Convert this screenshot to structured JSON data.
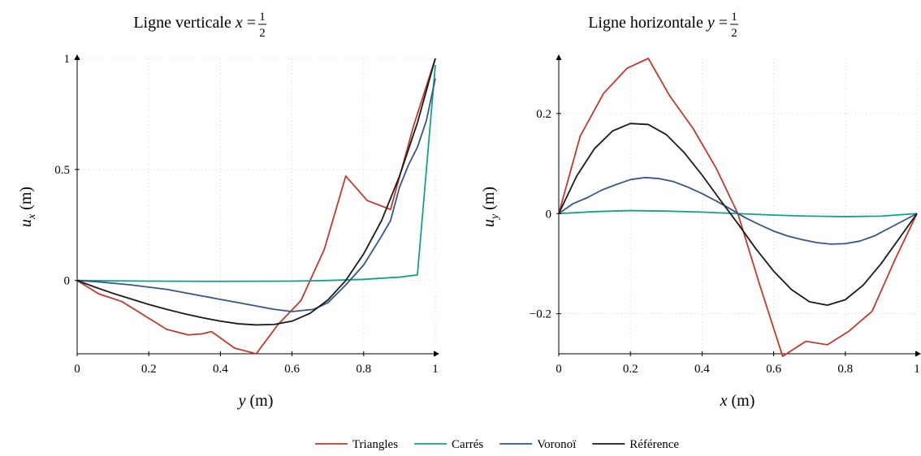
{
  "chart_data": [
    {
      "type": "line",
      "title": "Ligne verticale x = ½",
      "title_parts": {
        "text": "Ligne verticale ",
        "var": "x",
        "eq": " = ",
        "num": "1",
        "den": "2"
      },
      "xlabel": "y (m)",
      "xlabel_parts": {
        "var": "y",
        "unit": " (m)"
      },
      "ylabel": "u_x (m)",
      "ylabel_parts": {
        "var": "u",
        "sub": "x",
        "unit": " (m)"
      },
      "xlim": [
        0,
        1
      ],
      "ylim": [
        -0.33,
        1.0
      ],
      "xticks": [
        0,
        0.2,
        0.4,
        0.6,
        0.8,
        1
      ],
      "xtick_labels": [
        "0",
        "0.2",
        "0.4",
        "0.6",
        "0.8",
        "1"
      ],
      "yticks": [
        0,
        0.5,
        1
      ],
      "ytick_labels": [
        "0",
        "0.5",
        "1"
      ],
      "grid": true,
      "series": [
        {
          "name": "Triangles",
          "color": "#c0392b",
          "x": [
            0,
            0.06,
            0.125,
            0.19,
            0.25,
            0.31,
            0.35,
            0.375,
            0.44,
            0.5,
            0.56,
            0.625,
            0.69,
            0.75,
            0.81,
            0.875,
            0.94,
            1.0
          ],
          "y": [
            0,
            -0.06,
            -0.095,
            -0.16,
            -0.22,
            -0.245,
            -0.24,
            -0.23,
            -0.305,
            -0.33,
            -0.2,
            -0.09,
            0.14,
            0.47,
            0.36,
            0.32,
            0.7,
            1.0
          ]
        },
        {
          "name": "Carrés",
          "color": "#16a085",
          "x": [
            0,
            0.2,
            0.4,
            0.6,
            0.7,
            0.8,
            0.9,
            0.95,
            1.0
          ],
          "y": [
            0,
            -0.003,
            -0.004,
            -0.003,
            0.0,
            0.005,
            0.015,
            0.025,
            0.97
          ]
        },
        {
          "name": "Voronoï",
          "color": "#34568b",
          "x": [
            0,
            0.05,
            0.1,
            0.15,
            0.2,
            0.25,
            0.3,
            0.35,
            0.4,
            0.45,
            0.5,
            0.55,
            0.6,
            0.63,
            0.66,
            0.7,
            0.75,
            0.8,
            0.85,
            0.875,
            0.9,
            0.925,
            0.95,
            0.975,
            1.0
          ],
          "y": [
            0,
            -0.005,
            -0.012,
            -0.02,
            -0.03,
            -0.04,
            -0.055,
            -0.07,
            -0.085,
            -0.1,
            -0.115,
            -0.13,
            -0.14,
            -0.135,
            -0.13,
            -0.1,
            -0.02,
            0.07,
            0.2,
            0.27,
            0.42,
            0.52,
            0.6,
            0.72,
            0.91
          ]
        },
        {
          "name": "Référence",
          "color": "#1a1a1a",
          "x": [
            0,
            0.05,
            0.1,
            0.15,
            0.2,
            0.25,
            0.3,
            0.35,
            0.4,
            0.45,
            0.5,
            0.55,
            0.6,
            0.65,
            0.7,
            0.75,
            0.8,
            0.85,
            0.9,
            0.95,
            1.0
          ],
          "y": [
            0,
            -0.03,
            -0.058,
            -0.083,
            -0.108,
            -0.13,
            -0.15,
            -0.168,
            -0.183,
            -0.195,
            -0.2,
            -0.198,
            -0.183,
            -0.148,
            -0.088,
            0.0,
            0.12,
            0.27,
            0.47,
            0.71,
            1.0
          ]
        }
      ]
    },
    {
      "type": "line",
      "title": "Ligne horizontale y = ½",
      "title_parts": {
        "text": "Ligne horizontale ",
        "var": "y",
        "eq": " = ",
        "num": "1",
        "den": "2"
      },
      "xlabel": "x (m)",
      "xlabel_parts": {
        "var": "x",
        "unit": " (m)"
      },
      "ylabel": "u_y (m)",
      "ylabel_parts": {
        "var": "u",
        "sub": "y",
        "unit": " (m)"
      },
      "xlim": [
        0,
        1
      ],
      "ylim": [
        -0.28,
        0.31
      ],
      "xticks": [
        0,
        0.2,
        0.4,
        0.6,
        0.8,
        1
      ],
      "xtick_labels": [
        "0",
        "0.2",
        "0.4",
        "0.6",
        "0.8",
        "1"
      ],
      "yticks": [
        -0.2,
        0,
        0.2
      ],
      "ytick_labels": [
        "−0.2",
        "0",
        "0.2"
      ],
      "grid": true,
      "series": [
        {
          "name": "Triangles",
          "color": "#c0392b",
          "x": [
            0,
            0.06,
            0.125,
            0.19,
            0.25,
            0.31,
            0.375,
            0.44,
            0.5,
            0.56,
            0.625,
            0.69,
            0.75,
            0.81,
            0.875,
            0.94,
            1.0
          ],
          "y": [
            0,
            0.155,
            0.24,
            0.29,
            0.31,
            0.235,
            0.17,
            0.09,
            0.0,
            -0.14,
            -0.285,
            -0.255,
            -0.262,
            -0.235,
            -0.195,
            -0.09,
            0.0
          ]
        },
        {
          "name": "Carrés",
          "color": "#16a085",
          "x": [
            0,
            0.1,
            0.2,
            0.3,
            0.4,
            0.5,
            0.6,
            0.7,
            0.8,
            0.9,
            1.0
          ],
          "y": [
            0,
            0.004,
            0.006,
            0.005,
            0.003,
            0.0,
            -0.003,
            -0.005,
            -0.006,
            -0.005,
            0.0
          ]
        },
        {
          "name": "Voronoï",
          "color": "#34568b",
          "x": [
            0,
            0.04,
            0.08,
            0.12,
            0.16,
            0.2,
            0.24,
            0.28,
            0.32,
            0.36,
            0.4,
            0.44,
            0.48,
            0.52,
            0.56,
            0.6,
            0.64,
            0.68,
            0.72,
            0.76,
            0.8,
            0.84,
            0.88,
            0.92,
            0.96,
            1.0
          ],
          "y": [
            0,
            0.02,
            0.032,
            0.047,
            0.058,
            0.068,
            0.072,
            0.07,
            0.064,
            0.053,
            0.04,
            0.025,
            0.009,
            -0.008,
            -0.022,
            -0.035,
            -0.045,
            -0.052,
            -0.058,
            -0.061,
            -0.06,
            -0.055,
            -0.045,
            -0.03,
            -0.015,
            0.0
          ]
        },
        {
          "name": "Référence",
          "color": "#1a1a1a",
          "x": [
            0,
            0.05,
            0.1,
            0.15,
            0.2,
            0.25,
            0.3,
            0.35,
            0.4,
            0.45,
            0.5,
            0.55,
            0.6,
            0.65,
            0.7,
            0.75,
            0.8,
            0.85,
            0.9,
            0.95,
            1.0
          ],
          "y": [
            0,
            0.075,
            0.13,
            0.165,
            0.18,
            0.178,
            0.158,
            0.122,
            0.077,
            0.028,
            -0.02,
            -0.07,
            -0.115,
            -0.152,
            -0.176,
            -0.183,
            -0.172,
            -0.143,
            -0.1,
            -0.05,
            0.0
          ]
        }
      ]
    }
  ],
  "legend": {
    "placement": "bottom-center",
    "items": [
      {
        "label": "Triangles",
        "color": "#c0392b"
      },
      {
        "label": "Carrés",
        "color": "#16a085"
      },
      {
        "label": "Voronoï",
        "color": "#34568b"
      },
      {
        "label": "Référence",
        "color": "#1a1a1a"
      }
    ]
  }
}
